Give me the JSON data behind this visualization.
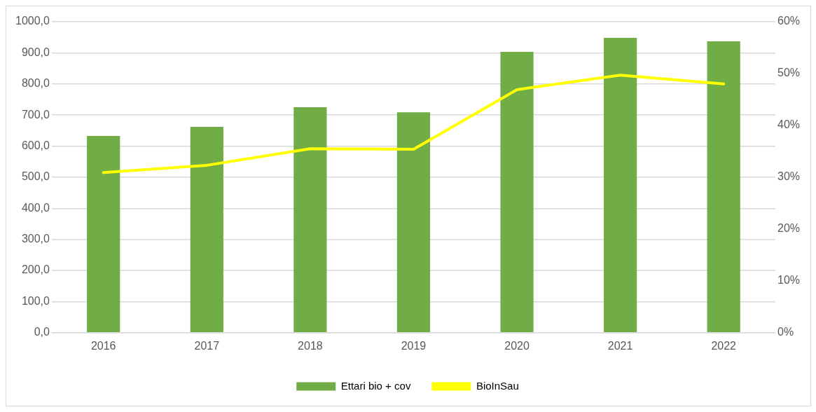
{
  "chart_data": {
    "type": "bar",
    "categories": [
      "2016",
      "2017",
      "2018",
      "2019",
      "2020",
      "2021",
      "2022"
    ],
    "series": [
      {
        "name": "Ettari bio + cov",
        "color": "#70ad47",
        "values": [
          633,
          662,
          725,
          709,
          903,
          948,
          937
        ]
      },
      {
        "name": "BioInSau",
        "type": "line",
        "axis": "y2",
        "color": "#ffff00",
        "values": [
          30.9,
          32.3,
          35.5,
          35.4,
          46.9,
          49.7,
          48.0
        ]
      }
    ],
    "ylim": [
      0,
      1000
    ],
    "yticks": [
      {
        "value": 0,
        "label": "0,0"
      },
      {
        "value": 100,
        "label": "100,0"
      },
      {
        "value": 200,
        "label": "200,0"
      },
      {
        "value": 300,
        "label": "300,0"
      },
      {
        "value": 400,
        "label": "400,0"
      },
      {
        "value": 500,
        "label": "500,0"
      },
      {
        "value": 600,
        "label": "600,0"
      },
      {
        "value": 700,
        "label": "700,0"
      },
      {
        "value": 800,
        "label": "800,0"
      },
      {
        "value": 900,
        "label": "900,0"
      },
      {
        "value": 1000,
        "label": "1000,0"
      }
    ],
    "y2lim": [
      0,
      60
    ],
    "y2ticks": [
      {
        "value": 0,
        "label": "0%"
      },
      {
        "value": 10,
        "label": "10%"
      },
      {
        "value": 20,
        "label": "20%"
      },
      {
        "value": 30,
        "label": "30%"
      },
      {
        "value": 40,
        "label": "40%"
      },
      {
        "value": 50,
        "label": "50%"
      },
      {
        "value": 60,
        "label": "60%"
      }
    ],
    "grid": "y",
    "legend": "bottom",
    "marker": "none",
    "line_style": "solid"
  }
}
